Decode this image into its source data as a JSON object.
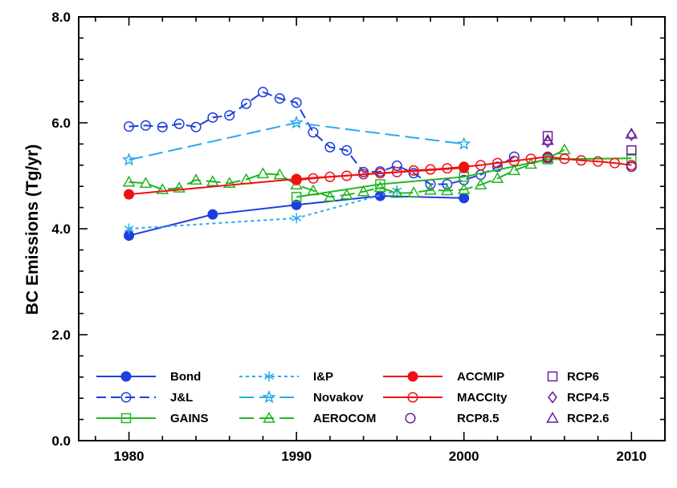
{
  "chart_data": {
    "type": "line",
    "title": "",
    "xlabel": "",
    "ylabel": "BC Emissions (Tg/yr)",
    "xlim": [
      1977,
      2012
    ],
    "ylim": [
      0.0,
      8.0
    ],
    "x_ticks": [
      1980,
      1990,
      2000,
      2010
    ],
    "x_tick_labels": [
      "1980",
      "1990",
      "2000",
      "2010"
    ],
    "y_ticks": [
      0,
      2,
      4,
      6,
      8
    ],
    "y_tick_labels": [
      "0.0",
      "2.0",
      "4.0",
      "6.0",
      "8.0"
    ],
    "grid": false,
    "legend": "bottom-inside",
    "series": [
      {
        "name": "Bond",
        "color": "#1f3fdd",
        "dash": "solid",
        "marker": "circle-filled",
        "x": [
          1980,
          1985,
          1990,
          1995,
          2000
        ],
        "y": [
          3.87,
          4.27,
          4.45,
          4.62,
          4.58
        ]
      },
      {
        "name": "J&L",
        "color": "#1f3fdd",
        "dash": "dashed",
        "marker": "circle-open",
        "x": [
          1980,
          1981,
          1982,
          1983,
          1984,
          1985,
          1986,
          1987,
          1988,
          1989,
          1990,
          1991,
          1992,
          1993,
          1994,
          1995,
          1996,
          1997,
          1998,
          1999,
          2000,
          2001,
          2002,
          2003
        ],
        "y": [
          5.93,
          5.95,
          5.92,
          5.98,
          5.92,
          6.1,
          6.14,
          6.36,
          6.58,
          6.46,
          6.38,
          5.82,
          5.54,
          5.48,
          5.07,
          5.08,
          5.19,
          5.05,
          4.84,
          4.84,
          4.92,
          5.02,
          5.17,
          5.36
        ]
      },
      {
        "name": "GAINS",
        "color": "#22b522",
        "dash": "solid",
        "marker": "square-open",
        "x": [
          1990,
          1995,
          2000,
          2005,
          2010
        ],
        "y": [
          4.6,
          4.84,
          4.98,
          5.31,
          5.33
        ]
      },
      {
        "name": "I&P",
        "color": "#2aaaee",
        "dash": "dotted",
        "marker": "asterisk",
        "x": [
          1980,
          1990,
          1996
        ],
        "y": [
          4.0,
          4.2,
          4.72
        ]
      },
      {
        "name": "Novakov",
        "color": "#2aaaee",
        "dash": "longdash",
        "marker": "star-open",
        "x": [
          1980,
          1990,
          2000
        ],
        "y": [
          5.3,
          6.0,
          5.6
        ]
      },
      {
        "name": "AEROCOM",
        "color": "#22b522",
        "dash": "longdash",
        "marker": "triangle-open",
        "x": [
          1980,
          1981,
          1982,
          1983,
          1984,
          1985,
          1986,
          1987,
          1988,
          1989,
          1990,
          1991,
          1992,
          1993,
          1994,
          1995,
          1996,
          1997,
          1998,
          1999,
          2000,
          2001,
          2002,
          2003,
          2004,
          2005,
          2006
        ],
        "y": [
          4.88,
          4.86,
          4.74,
          4.77,
          4.92,
          4.89,
          4.86,
          4.93,
          5.04,
          5.02,
          4.83,
          4.72,
          4.6,
          4.64,
          4.7,
          4.78,
          4.67,
          4.68,
          4.73,
          4.72,
          4.74,
          4.83,
          4.95,
          5.1,
          5.22,
          5.33,
          5.49
        ]
      },
      {
        "name": "ACCMIP",
        "color": "#ee1111",
        "dash": "solid",
        "marker": "circle-filled",
        "x": [
          1980,
          1990,
          2000
        ],
        "y": [
          4.65,
          4.94,
          5.15
        ]
      },
      {
        "name": "MACCIty",
        "color": "#ee1111",
        "dash": "solid",
        "marker": "circle-open",
        "x": [
          1990,
          1991,
          1992,
          1993,
          1994,
          1995,
          1996,
          1997,
          1998,
          1999,
          2000,
          2001,
          2002,
          2003,
          2004,
          2005,
          2006,
          2007,
          2008,
          2009,
          2010
        ],
        "y": [
          4.92,
          4.95,
          4.98,
          5.0,
          5.03,
          5.05,
          5.07,
          5.1,
          5.12,
          5.14,
          5.17,
          5.2,
          5.24,
          5.28,
          5.32,
          5.36,
          5.32,
          5.29,
          5.27,
          5.24,
          5.2
        ]
      },
      {
        "name": "RCP8.5",
        "color": "#6a1b9a",
        "dash": "none",
        "marker": "circle-open",
        "x": [
          2005,
          2010
        ],
        "y": [
          5.34,
          5.17
        ]
      },
      {
        "name": "RCP6",
        "color": "#6a1b9a",
        "dash": "none",
        "marker": "square-open",
        "x": [
          2005,
          2010
        ],
        "y": [
          5.75,
          5.48
        ]
      },
      {
        "name": "RCP4.5",
        "color": "#6a1b9a",
        "dash": "none",
        "marker": "diamond-open",
        "x": [
          2005,
          2010
        ],
        "y": [
          5.64,
          5.77
        ]
      },
      {
        "name": "RCP2.6",
        "color": "#6a1b9a",
        "dash": "none",
        "marker": "triangle-open",
        "x": [
          2005,
          2010
        ],
        "y": [
          5.67,
          5.79
        ]
      }
    ],
    "legend_columns": [
      [
        "Bond",
        "J&L",
        "GAINS"
      ],
      [
        "I&P",
        "Novakov",
        "AEROCOM"
      ],
      [
        "ACCMIP",
        "MACCIty",
        "RCP8.5"
      ],
      [
        "RCP6",
        "RCP4.5",
        "RCP2.6"
      ]
    ]
  }
}
